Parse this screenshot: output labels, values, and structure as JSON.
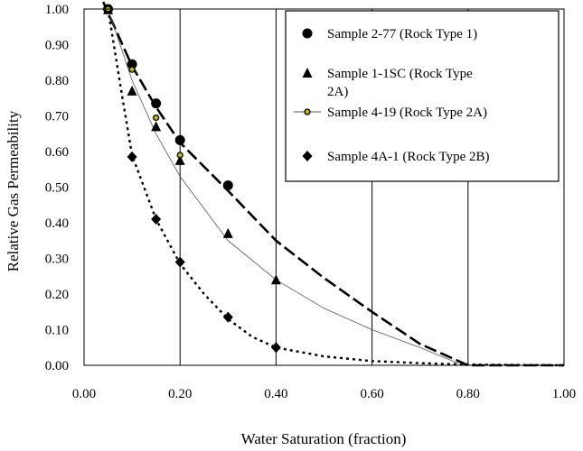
{
  "chart_data": {
    "type": "line",
    "title": "",
    "xlabel": "Water Saturation (fraction)",
    "ylabel": "Relative Gas Permeability",
    "xlim": [
      0,
      1
    ],
    "ylim": [
      0,
      1
    ],
    "xticks": [
      "0.00",
      "0.20",
      "0.40",
      "0.60",
      "0.80",
      "1.00"
    ],
    "yticks": [
      "0.00",
      "0.10",
      "0.20",
      "0.30",
      "0.40",
      "0.50",
      "0.60",
      "0.70",
      "0.80",
      "0.90",
      "1.00"
    ],
    "grid": "vertical",
    "legend_position": "top-right",
    "series": [
      {
        "name": "Sample 2-77 (Rock Type 1)",
        "marker": "circle",
        "points": [
          [
            0.05,
            1.0
          ],
          [
            0.1,
            0.845
          ],
          [
            0.15,
            0.735
          ],
          [
            0.2,
            0.632
          ],
          [
            0.3,
            0.505
          ]
        ],
        "fit": [
          [
            0.04,
            1.02
          ],
          [
            0.1,
            0.84
          ],
          [
            0.15,
            0.725
          ],
          [
            0.2,
            0.625
          ],
          [
            0.3,
            0.49
          ],
          [
            0.4,
            0.35
          ],
          [
            0.5,
            0.245
          ],
          [
            0.6,
            0.15
          ],
          [
            0.7,
            0.06
          ],
          [
            0.8,
            0.0
          ],
          [
            1.0,
            0.0
          ]
        ],
        "fit_style": "long-dash"
      },
      {
        "name": "Sample 1-1SC (Rock Type 2A)",
        "marker": "triangle",
        "points": [
          [
            0.05,
            0.998
          ],
          [
            0.1,
            0.77
          ],
          [
            0.15,
            0.67
          ],
          [
            0.2,
            0.575
          ],
          [
            0.3,
            0.37
          ],
          [
            0.4,
            0.24
          ]
        ],
        "fit": [],
        "fit_style": "none"
      },
      {
        "name": "Sample 4-19 (Rock Type 2A)",
        "marker": "small-circle",
        "points": [
          [
            0.05,
            1.0
          ],
          [
            0.1,
            0.83
          ],
          [
            0.15,
            0.695
          ],
          [
            0.2,
            0.59
          ]
        ],
        "fit": [
          [
            0.05,
            1.0
          ],
          [
            0.1,
            0.8
          ],
          [
            0.15,
            0.65
          ],
          [
            0.2,
            0.53
          ],
          [
            0.3,
            0.35
          ],
          [
            0.4,
            0.24
          ],
          [
            0.5,
            0.16
          ],
          [
            0.6,
            0.1
          ],
          [
            0.7,
            0.05
          ],
          [
            0.78,
            0.005
          ]
        ],
        "fit_style": "thin-solid"
      },
      {
        "name": "Sample 4A-1 (Rock Type 2B)",
        "marker": "diamond",
        "points": [
          [
            0.1,
            0.585
          ],
          [
            0.15,
            0.41
          ],
          [
            0.2,
            0.29
          ],
          [
            0.3,
            0.135
          ],
          [
            0.4,
            0.05
          ]
        ],
        "fit": [
          [
            0.05,
            1.0
          ],
          [
            0.08,
            0.75
          ],
          [
            0.1,
            0.59
          ],
          [
            0.15,
            0.41
          ],
          [
            0.2,
            0.285
          ],
          [
            0.25,
            0.2
          ],
          [
            0.3,
            0.13
          ],
          [
            0.35,
            0.08
          ],
          [
            0.4,
            0.05
          ],
          [
            0.5,
            0.025
          ],
          [
            0.6,
            0.012
          ],
          [
            0.7,
            0.006
          ],
          [
            0.8,
            0.002
          ],
          [
            1.0,
            0.0
          ]
        ],
        "fit_style": "dot-dash"
      }
    ],
    "legend": [
      "Sample 2-77 (Rock Type 1)",
      [
        "Sample 1-1SC (Rock Type",
        "2A)"
      ],
      "Sample 4-19 (Rock Type 2A)",
      "Sample 4A-1 (Rock Type 2B)"
    ]
  }
}
